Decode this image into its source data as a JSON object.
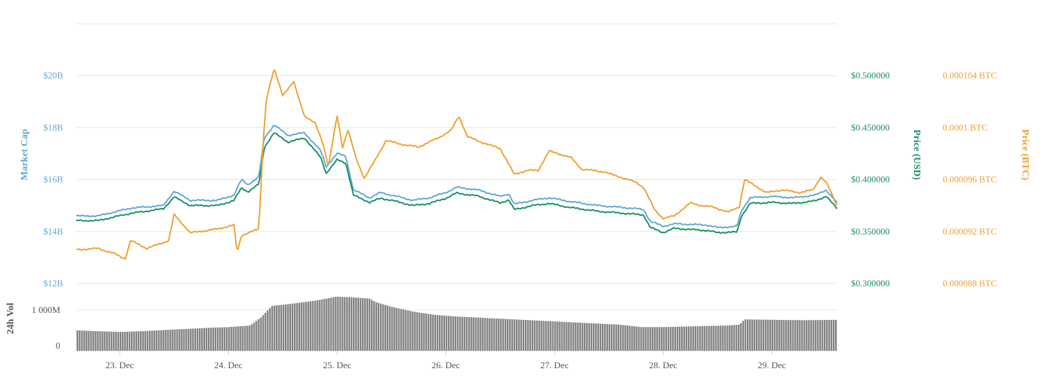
{
  "chart_data": {
    "type": "line",
    "x_unit": "days",
    "x_range": [
      22.6,
      29.6
    ],
    "x_ticks": [
      {
        "value": 23,
        "label": "23. Dec"
      },
      {
        "value": 24,
        "label": "24. Dec"
      },
      {
        "value": 25,
        "label": "25. Dec"
      },
      {
        "value": 26,
        "label": "26. Dec"
      },
      {
        "value": 27,
        "label": "27. Dec"
      },
      {
        "value": 28,
        "label": "28. Dec"
      },
      {
        "value": 29,
        "label": "29. Dec"
      }
    ],
    "axes": {
      "market_cap": {
        "label": "Market Cap",
        "color": "#5fa8d8",
        "range": [
          12,
          20
        ],
        "ticks": [
          {
            "value": 12,
            "label": "$12B"
          },
          {
            "value": 14,
            "label": "$14B"
          },
          {
            "value": 16,
            "label": "$16B"
          },
          {
            "value": 18,
            "label": "$18B"
          },
          {
            "value": 20,
            "label": "$20B"
          }
        ]
      },
      "price_usd": {
        "label": "Price (USD)",
        "color": "#1e8f62",
        "range": [
          0.3,
          0.5
        ],
        "ticks": [
          {
            "value": 0.3,
            "label": "$0.300000"
          },
          {
            "value": 0.35,
            "label": "$0.350000"
          },
          {
            "value": 0.4,
            "label": "$0.400000"
          },
          {
            "value": 0.45,
            "label": "$0.450000"
          },
          {
            "value": 0.5,
            "label": "$0.500000"
          }
        ]
      },
      "price_btc": {
        "label": "Price (BTC)",
        "color": "#f0a030",
        "range": [
          8.8e-05,
          0.000104
        ],
        "ticks": [
          {
            "value": 8.8e-05,
            "label": "0.000088 BTC"
          },
          {
            "value": 9.2e-05,
            "label": "0.000092 BTC"
          },
          {
            "value": 9.6e-05,
            "label": "0.000096 BTC"
          },
          {
            "value": 0.0001,
            "label": "0.0001 BTC"
          },
          {
            "value": 0.000104,
            "label": "0.000104 BTC"
          }
        ]
      },
      "volume": {
        "label": "24h Vol",
        "color": "#808080",
        "range": [
          0,
          1600
        ],
        "ticks": [
          {
            "value": 0,
            "label": "0"
          },
          {
            "value": 1000,
            "label": "1 000M"
          }
        ]
      }
    },
    "series": [
      {
        "name": "Market Cap",
        "axis": "market_cap",
        "color": "#5fa8d8",
        "points": [
          [
            22.6,
            14.6
          ],
          [
            22.8,
            14.6
          ],
          [
            23.1,
            14.9
          ],
          [
            23.4,
            15.0
          ],
          [
            23.5,
            15.55
          ],
          [
            23.65,
            15.2
          ],
          [
            23.9,
            15.2
          ],
          [
            24.05,
            15.4
          ],
          [
            24.12,
            16.0
          ],
          [
            24.18,
            15.8
          ],
          [
            24.28,
            16.1
          ],
          [
            24.33,
            17.6
          ],
          [
            24.42,
            18.1
          ],
          [
            24.55,
            17.7
          ],
          [
            24.7,
            17.8
          ],
          [
            24.85,
            17.1
          ],
          [
            24.9,
            16.5
          ],
          [
            25.0,
            17.0
          ],
          [
            25.08,
            16.9
          ],
          [
            25.15,
            15.6
          ],
          [
            25.3,
            15.3
          ],
          [
            25.4,
            15.5
          ],
          [
            25.5,
            15.4
          ],
          [
            25.7,
            15.2
          ],
          [
            25.85,
            15.3
          ],
          [
            26.0,
            15.5
          ],
          [
            26.1,
            15.7
          ],
          [
            26.3,
            15.6
          ],
          [
            26.5,
            15.35
          ],
          [
            26.58,
            15.45
          ],
          [
            26.63,
            15.05
          ],
          [
            26.8,
            15.2
          ],
          [
            26.95,
            15.3
          ],
          [
            27.15,
            15.15
          ],
          [
            27.4,
            15.0
          ],
          [
            27.7,
            14.9
          ],
          [
            27.82,
            14.85
          ],
          [
            27.88,
            14.4
          ],
          [
            28.0,
            14.2
          ],
          [
            28.1,
            14.3
          ],
          [
            28.4,
            14.25
          ],
          [
            28.5,
            14.15
          ],
          [
            28.68,
            14.2
          ],
          [
            28.72,
            14.8
          ],
          [
            28.8,
            15.3
          ],
          [
            29.0,
            15.35
          ],
          [
            29.2,
            15.3
          ],
          [
            29.4,
            15.4
          ],
          [
            29.5,
            15.6
          ],
          [
            29.6,
            15.1
          ]
        ]
      },
      {
        "name": "Price (USD)",
        "axis": "price_usd",
        "color": "#1e8f62",
        "points": [
          [
            22.6,
            0.3605
          ],
          [
            22.8,
            0.3605
          ],
          [
            23.1,
            0.3675
          ],
          [
            23.4,
            0.3718
          ],
          [
            23.5,
            0.3832
          ],
          [
            23.65,
            0.375
          ],
          [
            23.9,
            0.375
          ],
          [
            24.05,
            0.3798
          ],
          [
            24.12,
            0.392
          ],
          [
            24.18,
            0.3882
          ],
          [
            24.28,
            0.3955
          ],
          [
            24.33,
            0.431
          ],
          [
            24.42,
            0.445
          ],
          [
            24.55,
            0.436
          ],
          [
            24.7,
            0.44
          ],
          [
            24.85,
            0.421
          ],
          [
            24.9,
            0.406
          ],
          [
            25.0,
            0.419
          ],
          [
            25.08,
            0.416
          ],
          [
            25.15,
            0.385
          ],
          [
            25.3,
            0.378
          ],
          [
            25.4,
            0.382
          ],
          [
            25.5,
            0.38
          ],
          [
            25.7,
            0.375
          ],
          [
            25.85,
            0.377
          ],
          [
            26.0,
            0.382
          ],
          [
            26.1,
            0.387
          ],
          [
            26.3,
            0.384
          ],
          [
            26.5,
            0.3775
          ],
          [
            26.58,
            0.3805
          ],
          [
            26.63,
            0.371
          ],
          [
            26.8,
            0.375
          ],
          [
            26.95,
            0.377
          ],
          [
            27.15,
            0.373
          ],
          [
            27.4,
            0.3695
          ],
          [
            27.7,
            0.367
          ],
          [
            27.82,
            0.366
          ],
          [
            27.88,
            0.354
          ],
          [
            28.0,
            0.349
          ],
          [
            28.1,
            0.353
          ],
          [
            28.4,
            0.351
          ],
          [
            28.5,
            0.349
          ],
          [
            28.68,
            0.3495
          ],
          [
            28.72,
            0.365
          ],
          [
            28.8,
            0.377
          ],
          [
            29.0,
            0.378
          ],
          [
            29.2,
            0.377
          ],
          [
            29.4,
            0.3795
          ],
          [
            29.5,
            0.384
          ],
          [
            29.6,
            0.372
          ]
        ]
      },
      {
        "name": "Price (BTC)",
        "axis": "price_btc",
        "color": "#f0a030",
        "points": [
          [
            22.6,
            9.06e-05
          ],
          [
            22.8,
            9.07e-05
          ],
          [
            22.95,
            9.03e-05
          ],
          [
            23.05,
            8.99e-05
          ],
          [
            23.1,
            9.13e-05
          ],
          [
            23.25,
            9.07e-05
          ],
          [
            23.45,
            9.13e-05
          ],
          [
            23.5,
            9.33e-05
          ],
          [
            23.65,
            9.19e-05
          ],
          [
            23.9,
            9.22e-05
          ],
          [
            24.05,
            9.25e-05
          ],
          [
            24.08,
            9.04e-05
          ],
          [
            24.12,
            9.17e-05
          ],
          [
            24.28,
            9.22e-05
          ],
          [
            24.32,
            9.9e-05
          ],
          [
            24.35,
            0.0001022
          ],
          [
            24.42,
            0.0001045
          ],
          [
            24.5,
            0.0001025
          ],
          [
            24.6,
            0.0001035
          ],
          [
            24.7,
            0.0001009
          ],
          [
            24.8,
            0.0001003
          ],
          [
            24.87,
            9.88e-05
          ],
          [
            24.92,
            9.7e-05
          ],
          [
            25.0,
            0.0001009
          ],
          [
            25.05,
            9.85e-05
          ],
          [
            25.1,
            9.98e-05
          ],
          [
            25.18,
            9.75e-05
          ],
          [
            25.25,
            9.61e-05
          ],
          [
            25.35,
            9.75e-05
          ],
          [
            25.45,
            9.9e-05
          ],
          [
            25.6,
            9.87e-05
          ],
          [
            25.75,
            9.85e-05
          ],
          [
            25.95,
            9.93e-05
          ],
          [
            26.05,
            9.98e-05
          ],
          [
            26.12,
            0.0001009
          ],
          [
            26.2,
            9.93e-05
          ],
          [
            26.35,
            9.88e-05
          ],
          [
            26.5,
            9.84e-05
          ],
          [
            26.63,
            9.64e-05
          ],
          [
            26.75,
            9.67e-05
          ],
          [
            26.85,
            9.67e-05
          ],
          [
            26.95,
            9.82e-05
          ],
          [
            27.15,
            9.77e-05
          ],
          [
            27.25,
            9.68e-05
          ],
          [
            27.45,
            9.66e-05
          ],
          [
            27.6,
            9.62e-05
          ],
          [
            27.75,
            9.58e-05
          ],
          [
            27.82,
            9.54e-05
          ],
          [
            27.92,
            9.37e-05
          ],
          [
            28.0,
            9.3e-05
          ],
          [
            28.1,
            9.32e-05
          ],
          [
            28.25,
            9.42e-05
          ],
          [
            28.35,
            9.4e-05
          ],
          [
            28.45,
            9.39e-05
          ],
          [
            28.6,
            9.35e-05
          ],
          [
            28.7,
            9.39e-05
          ],
          [
            28.75,
            9.6e-05
          ],
          [
            28.85,
            9.55e-05
          ],
          [
            28.95,
            9.5e-05
          ],
          [
            29.1,
            9.52e-05
          ],
          [
            29.25,
            9.5e-05
          ],
          [
            29.38,
            9.52e-05
          ],
          [
            29.45,
            9.62e-05
          ],
          [
            29.5,
            9.58e-05
          ],
          [
            29.6,
            9.4e-05
          ]
        ]
      }
    ],
    "volume_series": {
      "name": "24h Vol",
      "axis": "volume",
      "color": "#808080",
      "points": [
        [
          22.6,
          500
        ],
        [
          22.8,
          480
        ],
        [
          23.0,
          460
        ],
        [
          23.2,
          480
        ],
        [
          23.5,
          520
        ],
        [
          23.8,
          560
        ],
        [
          24.0,
          580
        ],
        [
          24.2,
          620
        ],
        [
          24.3,
          820
        ],
        [
          24.4,
          1100
        ],
        [
          24.6,
          1160
        ],
        [
          24.8,
          1230
        ],
        [
          25.0,
          1330
        ],
        [
          25.15,
          1310
        ],
        [
          25.3,
          1280
        ],
        [
          25.35,
          1200
        ],
        [
          25.5,
          1080
        ],
        [
          25.7,
          960
        ],
        [
          25.9,
          880
        ],
        [
          26.1,
          840
        ],
        [
          26.4,
          800
        ],
        [
          26.7,
          760
        ],
        [
          27.0,
          720
        ],
        [
          27.3,
          680
        ],
        [
          27.6,
          640
        ],
        [
          27.8,
          580
        ],
        [
          28.0,
          580
        ],
        [
          28.3,
          600
        ],
        [
          28.6,
          620
        ],
        [
          28.7,
          640
        ],
        [
          28.75,
          770
        ],
        [
          29.0,
          760
        ],
        [
          29.3,
          750
        ],
        [
          29.6,
          760
        ]
      ]
    },
    "grid": true
  }
}
